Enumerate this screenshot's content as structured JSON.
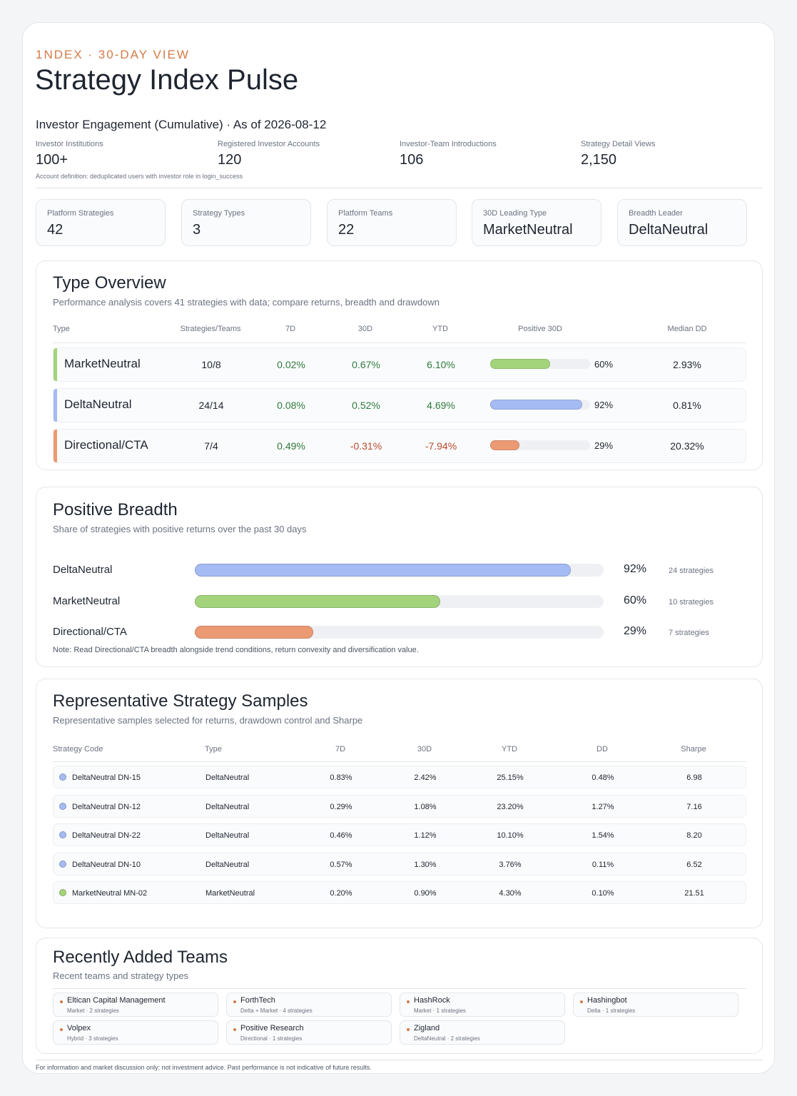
{
  "header": {
    "kicker": "1NDEX · 30-DAY VIEW",
    "title": "Strategy Index Pulse"
  },
  "engagement": {
    "title": "Investor Engagement (Cumulative) · As of 2026-08-12",
    "items": [
      {
        "label": "Investor Institutions",
        "value": "100+"
      },
      {
        "label": "Registered Investor Accounts",
        "value": "120"
      },
      {
        "label": "Investor-Team Introductions",
        "value": "106"
      },
      {
        "label": "Strategy Detail Views",
        "value": "2,150"
      }
    ],
    "note": "Account definition: deduplicated users with investor role in login_success"
  },
  "kpis": [
    {
      "label": "Platform Strategies",
      "value": "42"
    },
    {
      "label": "Strategy Types",
      "value": "3"
    },
    {
      "label": "Platform Teams",
      "value": "22"
    },
    {
      "label": "30D Leading Type",
      "value": "MarketNeutral"
    },
    {
      "label": "Breadth Leader",
      "value": "DeltaNeutral"
    }
  ],
  "type_overview": {
    "title": "Type Overview",
    "subtitle": "Performance analysis covers 41 strategies with data; compare returns, breadth and drawdown",
    "columns": [
      "Type",
      "Strategies/Teams",
      "7D",
      "30D",
      "YTD",
      "Positive 30D",
      "Median DD"
    ],
    "rows": [
      {
        "type": "MarketNeutral",
        "st": "10/8",
        "d7": "0.02%",
        "d30": "0.67%",
        "ytd": "6.10%",
        "pos_label": "60%",
        "pos": 0.6,
        "dd": "2.93%",
        "color": "#a3d47c",
        "d7_sign": "pos",
        "d30_sign": "pos",
        "ytd_sign": "pos"
      },
      {
        "type": "DeltaNeutral",
        "st": "24/14",
        "d7": "0.08%",
        "d30": "0.52%",
        "ytd": "4.69%",
        "pos_label": "92%",
        "pos": 0.92,
        "dd": "0.81%",
        "color": "#a5bbf3",
        "d7_sign": "pos",
        "d30_sign": "pos",
        "ytd_sign": "pos"
      },
      {
        "type": "Directional/CTA",
        "st": "7/4",
        "d7": "0.49%",
        "d30": "-0.31%",
        "ytd": "-7.94%",
        "pos_label": "29%",
        "pos": 0.29,
        "dd": "20.32%",
        "color": "#ec9a74",
        "d7_sign": "pos",
        "d30_sign": "neg",
        "ytd_sign": "neg"
      }
    ]
  },
  "breadth": {
    "title": "Positive Breadth",
    "subtitle": "Share of strategies with positive returns over the past 30 days",
    "rows": [
      {
        "label": "DeltaNeutral",
        "pct": "92%",
        "value": 0.92,
        "count": "24 strategies",
        "color": "#a5bbf3"
      },
      {
        "label": "MarketNeutral",
        "pct": "60%",
        "value": 0.6,
        "count": "10 strategies",
        "color": "#a3d47c"
      },
      {
        "label": "Directional/CTA",
        "pct": "29%",
        "value": 0.29,
        "count": "7 strategies",
        "color": "#ec9a74"
      }
    ],
    "note": "Note: Read Directional/CTA breadth alongside trend conditions, return convexity and diversification value."
  },
  "samples": {
    "title": "Representative Strategy Samples",
    "subtitle": "Representative samples selected for returns, drawdown control and Sharpe",
    "columns": [
      "Strategy Code",
      "Type",
      "7D",
      "30D",
      "YTD",
      "DD",
      "Sharpe"
    ],
    "rows": [
      {
        "code": "DeltaNeutral DN-15",
        "type": "DeltaNeutral",
        "d7": "0.83%",
        "d30": "2.42%",
        "ytd": "25.15%",
        "dd": "0.48%",
        "sharpe": "6.98",
        "color": "#a5bbf3"
      },
      {
        "code": "DeltaNeutral DN-12",
        "type": "DeltaNeutral",
        "d7": "0.29%",
        "d30": "1.08%",
        "ytd": "23.20%",
        "dd": "1.27%",
        "sharpe": "7.16",
        "color": "#a5bbf3"
      },
      {
        "code": "DeltaNeutral DN-22",
        "type": "DeltaNeutral",
        "d7": "0.46%",
        "d30": "1.12%",
        "ytd": "10.10%",
        "dd": "1.54%",
        "sharpe": "8.20",
        "color": "#a5bbf3"
      },
      {
        "code": "DeltaNeutral DN-10",
        "type": "DeltaNeutral",
        "d7": "0.57%",
        "d30": "1.30%",
        "ytd": "3.76%",
        "dd": "0.11%",
        "sharpe": "6.52",
        "color": "#a5bbf3"
      },
      {
        "code": "MarketNeutral MN-02",
        "type": "MarketNeutral",
        "d7": "0.20%",
        "d30": "0.90%",
        "ytd": "4.30%",
        "dd": "0.10%",
        "sharpe": "21.51",
        "color": "#a3d47c"
      }
    ]
  },
  "teams": {
    "title": "Recently Added Teams",
    "subtitle": "Recent teams and strategy types",
    "items": [
      {
        "name": "Eltican Capital Management",
        "meta": "Market · 2 strategies"
      },
      {
        "name": "ForthTech",
        "meta": "Delta + Market · 4 strategies"
      },
      {
        "name": "HashRock",
        "meta": "Market · 1 strategies"
      },
      {
        "name": "Hashingbot",
        "meta": "Delta · 1 strategies"
      },
      {
        "name": "Volpex",
        "meta": "Hybrid · 3 strategies"
      },
      {
        "name": "Positive Research",
        "meta": "Directional · 1 strategies"
      },
      {
        "name": "Zigland",
        "meta": "DeltaNeutral · 2 strategies"
      }
    ]
  },
  "footer": "For information and market discussion only; not investment advice. Past performance is not indicative of future results.",
  "colors": {
    "accent": "#d47a46",
    "positive": "#2f7a3e",
    "negative": "#b84a2c"
  }
}
